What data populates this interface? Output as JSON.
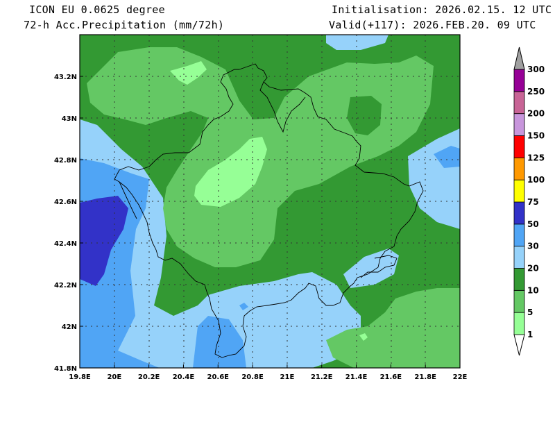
{
  "header": {
    "model": "ICON EU 0.0625 degree",
    "field": "72-h Acc.Precipitation (mm/72h)",
    "init": "Initialisation: 2026.02.15. 12 UTC",
    "valid": "Valid(+117): 2026.FEB.20. 09 UTC"
  },
  "map": {
    "lon_range": [
      19.8,
      22.0
    ],
    "lat_range": [
      41.8,
      43.4
    ],
    "x_ticks": [
      {
        "value": 19.8,
        "label": "19.8E"
      },
      {
        "value": 20.0,
        "label": "20E"
      },
      {
        "value": 20.2,
        "label": "20.2E"
      },
      {
        "value": 20.4,
        "label": "20.4E"
      },
      {
        "value": 20.6,
        "label": "20.6E"
      },
      {
        "value": 20.8,
        "label": "20.8E"
      },
      {
        "value": 21.0,
        "label": "21E"
      },
      {
        "value": 21.2,
        "label": "21.2E"
      },
      {
        "value": 21.4,
        "label": "21.4E"
      },
      {
        "value": 21.6,
        "label": "21.6E"
      },
      {
        "value": 21.8,
        "label": "21.8E"
      },
      {
        "value": 22.0,
        "label": "22E"
      }
    ],
    "y_ticks": [
      {
        "value": 41.8,
        "label": "41.8N"
      },
      {
        "value": 42.0,
        "label": "42N"
      },
      {
        "value": 42.2,
        "label": "42.2N"
      },
      {
        "value": 42.4,
        "label": "42.4N"
      },
      {
        "value": 42.6,
        "label": "42.6N"
      },
      {
        "value": 42.8,
        "label": "42.8N"
      },
      {
        "value": 43.0,
        "label": "43N"
      },
      {
        "value": 43.2,
        "label": "43.2N"
      }
    ],
    "grid": "dotted"
  },
  "colorbar": {
    "levels": [
      "1",
      "5",
      "10",
      "20",
      "30",
      "50",
      "75",
      "100",
      "125",
      "150",
      "200",
      "250",
      "300"
    ],
    "colors": [
      "#96ff96",
      "#64c864",
      "#339933",
      "#96d2fa",
      "#50a5f5",
      "#3232c8",
      "#ffff00",
      "#ff9900",
      "#ff0000",
      "#c896dc",
      "#c86496",
      "#960096",
      "#a0a0a0"
    ]
  }
}
